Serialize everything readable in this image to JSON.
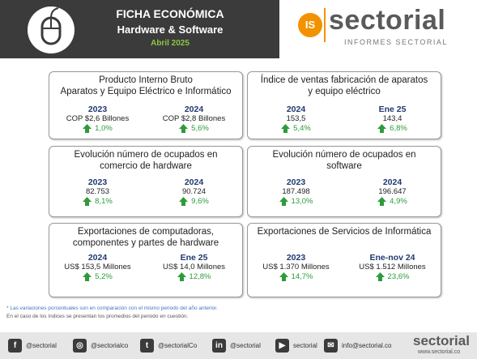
{
  "header": {
    "title": "FICHA ECONÓMICA",
    "subtitle": "Hardware & Software",
    "date": "Abril 2025",
    "logo_badge": "IS",
    "logo_name": "sectorial",
    "logo_tagline": "INFORMES SECTORIAL"
  },
  "cards": [
    {
      "title": [
        "Producto Interno Bruto",
        "Aparatos y Equipo Eléctrico e Informático"
      ],
      "items": [
        {
          "period": "2023",
          "value": "COP $2,6 Billones",
          "change": "1,0%"
        },
        {
          "period": "2024",
          "value": "COP $2,8 Billones",
          "change": "5,6%"
        }
      ]
    },
    {
      "title": [
        "Índice de ventas fabricación de aparatos",
        "y equipo eléctrico"
      ],
      "items": [
        {
          "period": "2024",
          "value": "153,5",
          "change": "5,4%"
        },
        {
          "period": "Ene  25",
          "value": "143,4",
          "change": "6,8%"
        }
      ]
    },
    {
      "title": [
        "Evolución número de ocupados en",
        "comercio de hardware"
      ],
      "items": [
        {
          "period": "2023",
          "value": "82.753",
          "change": "8,1%"
        },
        {
          "period": "2024",
          "value": "90.724",
          "change": "9,6%"
        }
      ]
    },
    {
      "title": [
        "Evolución número de ocupados en",
        "software"
      ],
      "items": [
        {
          "period": "2023",
          "value": "187.498",
          "change": "13,0%"
        },
        {
          "period": "2024",
          "value": "196.647",
          "change": "4,9%"
        }
      ]
    },
    {
      "title": [
        "Exportaciones de computadoras,",
        "componentes y partes de hardware"
      ],
      "items": [
        {
          "period": "2024",
          "value": "US$ 153,5 Millones",
          "change": "5,2%"
        },
        {
          "period": "Ene 25",
          "value": "US$ 14,0 Millones",
          "change": "12,8%"
        }
      ]
    },
    {
      "title": [
        "Exportaciones de Servicios de Informática"
      ],
      "items": [
        {
          "period": "2023",
          "value": "US$ 1.370 Millones",
          "change": "14,7%"
        },
        {
          "period": "Ene-nov 24",
          "value": "US$ 1.512  Millones",
          "change": "23,6%"
        }
      ]
    }
  ],
  "notes": [
    "* Las variaciones porcentuales son en comparación con el mismo periodo del año anterior.",
    "En el caso de los índices se presentan los promedios del periodo en cuestión."
  ],
  "footer": {
    "social": [
      "@sectorial",
      "@sectorialco",
      "@sectorialCo",
      "@sectorial",
      "sectorial",
      "info@sectorial.co"
    ],
    "brand": "sectorial",
    "url": "www.sectorial.co"
  }
}
